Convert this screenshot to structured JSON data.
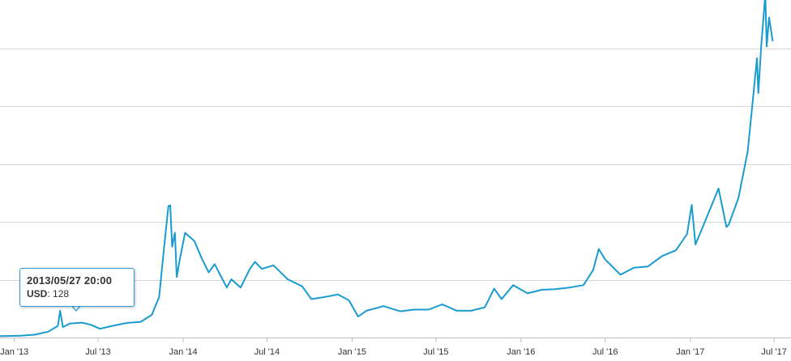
{
  "chart_data": {
    "type": "line",
    "title": "",
    "xlabel": "",
    "ylabel": "",
    "x_range": [
      "2012-12-01",
      "2017-07-20"
    ],
    "ylim": [
      0,
      2900
    ],
    "y_scale": "linear",
    "grid": "horizontal",
    "y_tick_labels_visible": false,
    "x_ticks": [
      {
        "date": "2013-01-01",
        "label": "Jan '13"
      },
      {
        "date": "2013-07-01",
        "label": "Jul '13"
      },
      {
        "date": "2014-01-01",
        "label": "Jan '14"
      },
      {
        "date": "2014-07-01",
        "label": "Jul '14"
      },
      {
        "date": "2015-01-01",
        "label": "Jan '15"
      },
      {
        "date": "2015-07-01",
        "label": "Jul '15"
      },
      {
        "date": "2016-01-01",
        "label": "Jan '16"
      },
      {
        "date": "2016-07-01",
        "label": "Jul '16"
      },
      {
        "date": "2017-01-01",
        "label": "Jan '17"
      },
      {
        "date": "2017-07-01",
        "label": "Jul '17"
      }
    ],
    "series": [
      {
        "color": "#1a9bd0",
        "points": [
          [
            "2012-12-01",
            12
          ],
          [
            "2013-01-15",
            15
          ],
          [
            "2013-02-15",
            25
          ],
          [
            "2013-03-15",
            50
          ],
          [
            "2013-04-05",
            100
          ],
          [
            "2013-04-10",
            230
          ],
          [
            "2013-04-16",
            90
          ],
          [
            "2013-05-01",
            120
          ],
          [
            "2013-05-27",
            128
          ],
          [
            "2013-06-15",
            110
          ],
          [
            "2013-07-05",
            75
          ],
          [
            "2013-08-01",
            100
          ],
          [
            "2013-09-01",
            125
          ],
          [
            "2013-10-01",
            135
          ],
          [
            "2013-10-25",
            195
          ],
          [
            "2013-11-10",
            350
          ],
          [
            "2013-11-20",
            750
          ],
          [
            "2013-11-30",
            1130
          ],
          [
            "2013-12-04",
            1135
          ],
          [
            "2013-12-08",
            780
          ],
          [
            "2013-12-14",
            900
          ],
          [
            "2013-12-18",
            520
          ],
          [
            "2013-12-25",
            680
          ],
          [
            "2014-01-05",
            900
          ],
          [
            "2014-01-25",
            830
          ],
          [
            "2014-02-10",
            680
          ],
          [
            "2014-02-25",
            560
          ],
          [
            "2014-03-10",
            630
          ],
          [
            "2014-04-05",
            430
          ],
          [
            "2014-04-15",
            500
          ],
          [
            "2014-05-05",
            430
          ],
          [
            "2014-05-25",
            590
          ],
          [
            "2014-06-05",
            650
          ],
          [
            "2014-06-20",
            590
          ],
          [
            "2014-07-15",
            620
          ],
          [
            "2014-08-15",
            500
          ],
          [
            "2014-09-15",
            440
          ],
          [
            "2014-10-05",
            330
          ],
          [
            "2014-11-05",
            350
          ],
          [
            "2014-12-01",
            370
          ],
          [
            "2014-12-25",
            320
          ],
          [
            "2015-01-14",
            180
          ],
          [
            "2015-02-01",
            230
          ],
          [
            "2015-03-10",
            270
          ],
          [
            "2015-04-15",
            225
          ],
          [
            "2015-05-15",
            240
          ],
          [
            "2015-06-15",
            240
          ],
          [
            "2015-07-15",
            285
          ],
          [
            "2015-08-15",
            230
          ],
          [
            "2015-09-15",
            230
          ],
          [
            "2015-10-15",
            260
          ],
          [
            "2015-11-04",
            420
          ],
          [
            "2015-11-20",
            330
          ],
          [
            "2015-12-15",
            450
          ],
          [
            "2016-01-15",
            380
          ],
          [
            "2016-02-15",
            410
          ],
          [
            "2016-03-15",
            415
          ],
          [
            "2016-04-15",
            430
          ],
          [
            "2016-05-15",
            450
          ],
          [
            "2016-06-05",
            580
          ],
          [
            "2016-06-17",
            760
          ],
          [
            "2016-07-01",
            670
          ],
          [
            "2016-08-03",
            540
          ],
          [
            "2016-09-01",
            600
          ],
          [
            "2016-10-01",
            610
          ],
          [
            "2016-11-01",
            700
          ],
          [
            "2016-12-01",
            750
          ],
          [
            "2016-12-25",
            890
          ],
          [
            "2017-01-04",
            1140
          ],
          [
            "2017-01-12",
            800
          ],
          [
            "2017-02-01",
            990
          ],
          [
            "2017-03-03",
            1280
          ],
          [
            "2017-03-20",
            950
          ],
          [
            "2017-03-25",
            970
          ],
          [
            "2017-04-15",
            1200
          ],
          [
            "2017-05-05",
            1600
          ],
          [
            "2017-05-20",
            2200
          ],
          [
            "2017-05-25",
            2400
          ],
          [
            "2017-05-28",
            2100
          ],
          [
            "2017-06-03",
            2500
          ],
          [
            "2017-06-12",
            2950
          ],
          [
            "2017-06-15",
            2500
          ],
          [
            "2017-06-20",
            2750
          ],
          [
            "2017-06-28",
            2550
          ]
        ]
      }
    ]
  },
  "tooltip": {
    "date": "2013/05/27 20:00",
    "key": "USD",
    "separator": ": ",
    "value": "128",
    "border_color": "#2b9fd6"
  },
  "colors": {
    "line": "#1a9bd0",
    "grid": "#d8d8d8",
    "axis": "#c0c0c0",
    "text": "#333333"
  }
}
